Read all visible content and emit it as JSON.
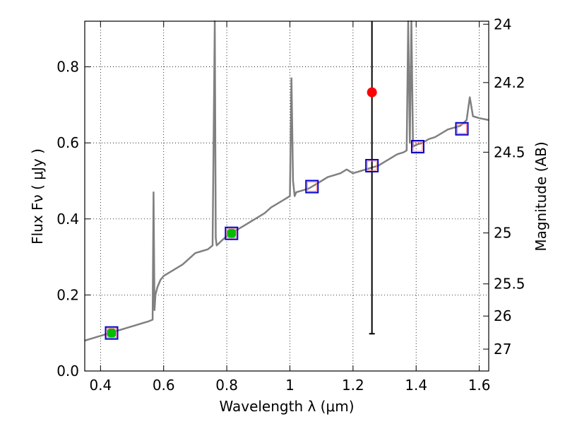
{
  "chart_data": {
    "type": "line",
    "xlabel": "Wavelength  λ (μm)",
    "ylabel": "Flux  Fν  ( μJy )",
    "y2label": "Magnitude (AB)",
    "xlim": [
      0.35,
      1.63
    ],
    "ylim": [
      0.0,
      0.92
    ],
    "grid": true,
    "x_ticks": [
      0.4,
      0.6,
      0.8,
      1.0,
      1.2,
      1.4,
      1.6
    ],
    "x_tick_labels": [
      "0.4",
      "0.6",
      "0.8",
      "1",
      "1.2",
      "1.4",
      "1.6"
    ],
    "y_ticks": [
      0.0,
      0.2,
      0.4,
      0.6,
      0.8
    ],
    "y_tick_labels": [
      "0.0",
      "0.2",
      "0.4",
      "0.6",
      "0.8"
    ],
    "mag_ticks": [
      24,
      24.2,
      24.5,
      25,
      25.5,
      26,
      27
    ],
    "mag_tick_labels": [
      "24",
      "24.2",
      "24.5",
      "25",
      "25.5",
      "26",
      "27"
    ],
    "colors": {
      "model": "#808080",
      "observed_good": "#00bb00",
      "observed_outlier": "#ff0000",
      "model_box": "#0000cc",
      "model_box_inner": "#ff8080"
    },
    "series": [
      {
        "name": "model spectrum",
        "x": [
          0.35,
          0.37,
          0.39,
          0.41,
          0.43,
          0.45,
          0.47,
          0.49,
          0.51,
          0.53,
          0.55,
          0.565,
          0.568,
          0.571,
          0.574,
          0.58,
          0.59,
          0.6,
          0.62,
          0.64,
          0.66,
          0.68,
          0.7,
          0.72,
          0.74,
          0.755,
          0.762,
          0.765,
          0.768,
          0.78,
          0.8,
          0.82,
          0.84,
          0.86,
          0.88,
          0.9,
          0.92,
          0.94,
          0.96,
          0.98,
          1.0,
          1.005,
          1.01,
          1.015,
          1.02,
          1.04,
          1.06,
          1.08,
          1.1,
          1.12,
          1.14,
          1.16,
          1.18,
          1.2,
          1.22,
          1.24,
          1.26,
          1.28,
          1.3,
          1.32,
          1.34,
          1.36,
          1.37,
          1.375,
          1.38,
          1.385,
          1.39,
          1.4,
          1.42,
          1.44,
          1.46,
          1.48,
          1.5,
          1.52,
          1.54,
          1.56,
          1.57,
          1.58,
          1.6,
          1.63
        ],
        "y": [
          0.08,
          0.085,
          0.09,
          0.095,
          0.1,
          0.105,
          0.11,
          0.115,
          0.12,
          0.125,
          0.13,
          0.135,
          0.47,
          0.16,
          0.2,
          0.22,
          0.24,
          0.25,
          0.26,
          0.27,
          0.28,
          0.295,
          0.31,
          0.315,
          0.32,
          0.33,
          0.92,
          0.35,
          0.33,
          0.34,
          0.355,
          0.365,
          0.375,
          0.385,
          0.395,
          0.405,
          0.415,
          0.43,
          0.44,
          0.45,
          0.46,
          0.77,
          0.5,
          0.46,
          0.47,
          0.475,
          0.48,
          0.49,
          0.5,
          0.51,
          0.515,
          0.52,
          0.53,
          0.52,
          0.525,
          0.53,
          0.535,
          0.54,
          0.55,
          0.56,
          0.57,
          0.575,
          0.58,
          0.92,
          0.6,
          0.92,
          0.59,
          0.595,
          0.6,
          0.61,
          0.615,
          0.625,
          0.635,
          0.64,
          0.645,
          0.66,
          0.72,
          0.67,
          0.665,
          0.66
        ]
      },
      {
        "name": "observed (green)",
        "points": [
          {
            "x": 0.435,
            "y": 0.1,
            "err": 0.008
          },
          {
            "x": 0.815,
            "y": 0.362,
            "err": 0.012
          }
        ]
      },
      {
        "name": "observed (red)",
        "points": [
          {
            "x": 1.26,
            "y": 0.733,
            "err_low": 0.098,
            "err_high": 0.92
          }
        ]
      },
      {
        "name": "model photometry (boxes)",
        "points": [
          {
            "x": 0.435,
            "y": 0.1
          },
          {
            "x": 0.815,
            "y": 0.362
          },
          {
            "x": 1.07,
            "y": 0.485
          },
          {
            "x": 1.26,
            "y": 0.54
          },
          {
            "x": 1.405,
            "y": 0.59
          },
          {
            "x": 1.545,
            "y": 0.637
          }
        ]
      }
    ]
  }
}
